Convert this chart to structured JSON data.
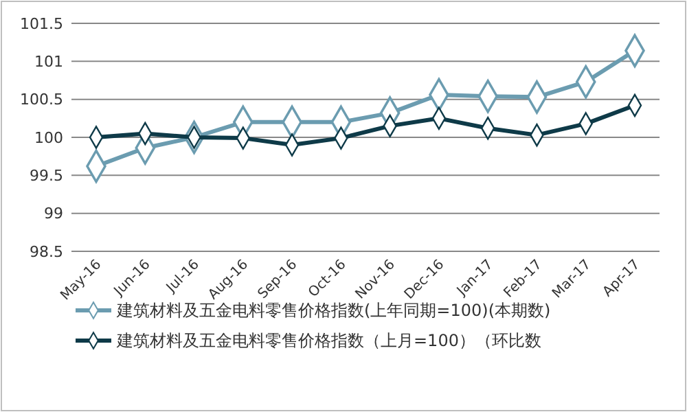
{
  "chart_data": {
    "type": "line",
    "categories": [
      "May-16",
      "Jun-16",
      "Jul-16",
      "Aug-16",
      "Sep-16",
      "Oct-16",
      "Nov-16",
      "Dec-16",
      "Jan-17",
      "Feb-17",
      "Mar-17",
      "Apr-17"
    ],
    "series": [
      {
        "name": "建筑材料及五金电料零售价格指数(上年同期=100)(本期数)",
        "color": "#6b9cb0",
        "values": [
          99.62,
          99.86,
          100.0,
          100.2,
          100.2,
          100.2,
          100.32,
          100.56,
          100.54,
          100.53,
          100.73,
          101.14
        ]
      },
      {
        "name": "建筑材料及五金电料零售价格指数（上月=100）（环比数",
        "color": "#0e3a48",
        "values": [
          100.0,
          100.05,
          100.0,
          99.99,
          99.9,
          99.99,
          100.15,
          100.25,
          100.12,
          100.03,
          100.18,
          100.42
        ]
      }
    ],
    "ylim": [
      98.5,
      101.5
    ],
    "yticks": [
      98.5,
      99,
      99.5,
      100,
      100.5,
      101,
      101.5
    ],
    "grid": "y",
    "legend": "bottom",
    "marker": "diamond",
    "line_style": "solid"
  }
}
